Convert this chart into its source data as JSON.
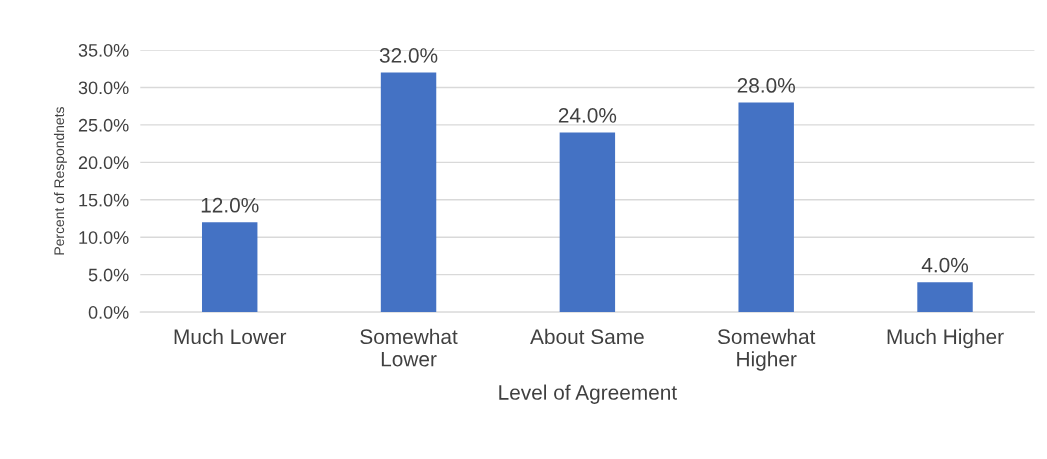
{
  "chart_data": {
    "type": "bar",
    "xlabel": "Level of Agreement",
    "ylabel": "Percent of Respondnets",
    "categories": [
      "Much Lower",
      "Somewhat\nLower",
      "About Same",
      "Somewhat\nHigher",
      "Much Higher"
    ],
    "values": [
      12,
      32,
      24,
      28,
      4
    ],
    "color": "#4472c4",
    "value_labels": [
      "12.0%",
      "32.0%",
      "24.0%",
      "28.0%",
      "4.0%"
    ],
    "ylim": [
      0,
      35
    ],
    "yticks": [
      {
        "value": 0,
        "label": "0.0%"
      },
      {
        "value": 5,
        "label": "5.0%"
      },
      {
        "value": 10,
        "label": "10.0%"
      },
      {
        "value": 15,
        "label": "15.0%"
      },
      {
        "value": 20,
        "label": "20.0%"
      },
      {
        "value": 25,
        "label": "25.0%"
      },
      {
        "value": 30,
        "label": "30.0%"
      },
      {
        "value": 35,
        "label": "35.0%"
      }
    ],
    "grid": "y",
    "legend": false
  }
}
